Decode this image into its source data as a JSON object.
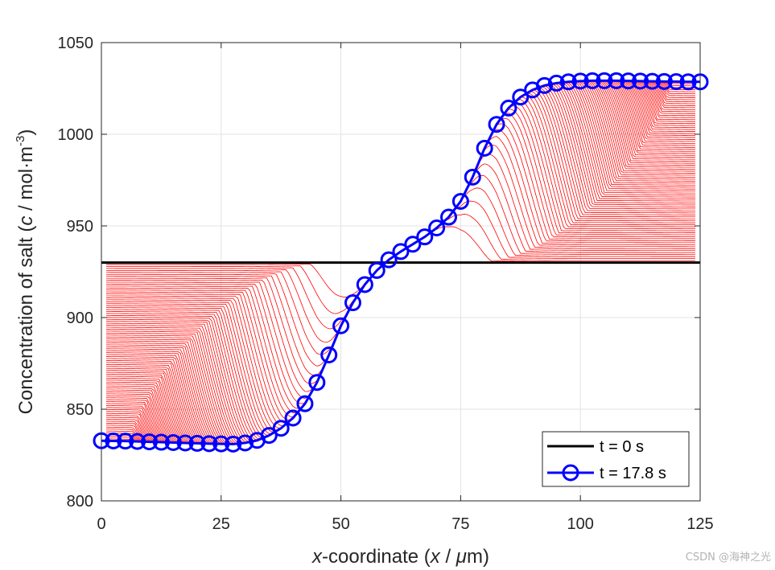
{
  "chart_data": {
    "type": "line",
    "xlabel_parts": [
      "x",
      "-coordinate (",
      "x",
      " / ",
      "μ",
      "m)"
    ],
    "ylabel_parts": [
      "Concentration of salt (",
      "c",
      " / mol·m",
      "-3",
      ")"
    ],
    "xlim": [
      0,
      125
    ],
    "ylim": [
      800,
      1050
    ],
    "xticks": [
      0,
      25,
      50,
      75,
      100,
      125
    ],
    "yticks": [
      800,
      850,
      900,
      950,
      1000,
      1050
    ],
    "xtick_labels": [
      "0",
      "25",
      "50",
      "75",
      "100",
      "125"
    ],
    "ytick_labels": [
      "800",
      "850",
      "900",
      "950",
      "1000",
      "1050"
    ],
    "grid": true,
    "legend_position": "bottom-right",
    "initial_concentration": 930,
    "intermediate_profiles": {
      "count": 90,
      "color": "#ff0000",
      "note": "red profiles evolving from the initial level to the final profile"
    },
    "series": [
      {
        "name": "t = 0 s",
        "color": "#000000",
        "marker": "none",
        "x": [
          0,
          125
        ],
        "y": [
          930,
          930
        ]
      },
      {
        "name": "t = 17.8 s",
        "color": "#0000ff",
        "marker": "circle",
        "x": [
          0,
          2.5,
          5,
          7.5,
          10,
          12.5,
          15,
          17.5,
          20,
          22.5,
          25,
          27.5,
          30,
          32.5,
          35,
          37.5,
          40,
          42.5,
          45,
          47.5,
          50,
          52.5,
          55,
          57.5,
          60,
          62.5,
          65,
          67.5,
          70,
          72.5,
          75,
          77.5,
          80,
          82.5,
          85,
          87.5,
          90,
          92.5,
          95,
          97.5,
          100,
          102.5,
          105,
          107.5,
          110,
          112.5,
          115,
          117.5,
          120,
          122.5,
          125
        ],
        "y": [
          832.8,
          832.7,
          832.6,
          832.4,
          832.2,
          832.0,
          831.8,
          831.6,
          831.4,
          831.2,
          831.1,
          831.0,
          831.6,
          833.0,
          835.7,
          839.6,
          845.2,
          853.0,
          864.6,
          879.6,
          895.5,
          908.1,
          918.0,
          925.7,
          931.5,
          936.0,
          940.0,
          944.0,
          948.9,
          954.8,
          963.4,
          976.6,
          992.4,
          1005.4,
          1014.3,
          1020.3,
          1024.2,
          1026.6,
          1027.9,
          1028.6,
          1029.0,
          1029.2,
          1029.2,
          1029.2,
          1029.1,
          1029.0,
          1028.9,
          1028.8,
          1028.7,
          1028.6,
          1028.6
        ]
      }
    ]
  },
  "watermark": "CSDN @海神之光"
}
